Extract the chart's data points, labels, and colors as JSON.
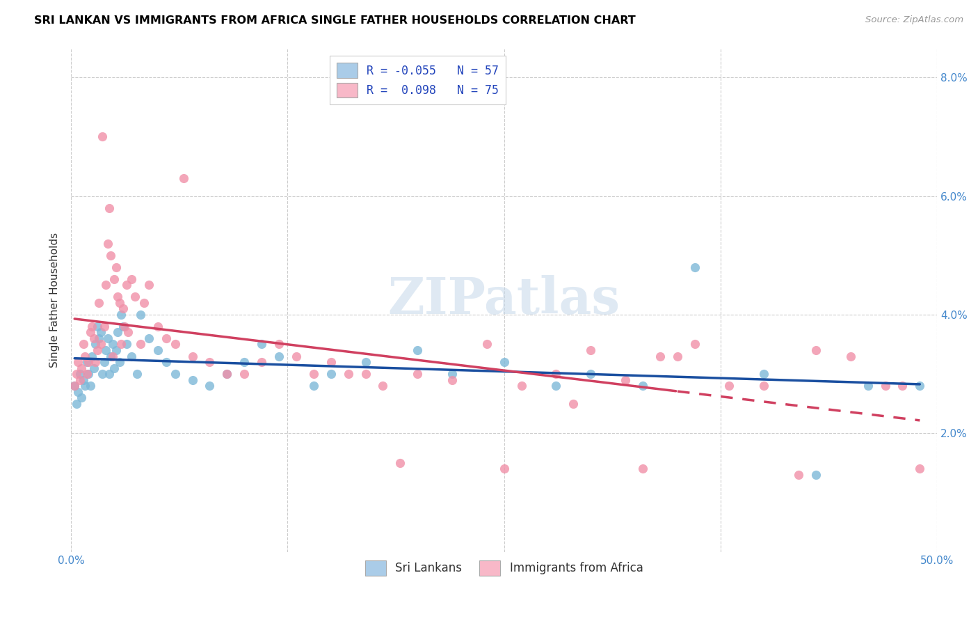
{
  "title": "SRI LANKAN VS IMMIGRANTS FROM AFRICA SINGLE FATHER HOUSEHOLDS CORRELATION CHART",
  "source": "Source: ZipAtlas.com",
  "ylabel": "Single Father Households",
  "xlim": [
    0.0,
    50.0
  ],
  "ylim": [
    0.0,
    8.5
  ],
  "yticks": [
    2.0,
    4.0,
    6.0,
    8.0
  ],
  "xticks": [
    0.0,
    12.5,
    25.0,
    37.5,
    50.0
  ],
  "xtick_labels": [
    "0.0%",
    "",
    "",
    "",
    "50.0%"
  ],
  "sri_lanka_color": "#7db8d8",
  "africa_color": "#f090a8",
  "sri_lanka_line_color": "#1a4fa0",
  "africa_line_color": "#d04060",
  "sri_lanka_legend_color": "#aacce8",
  "africa_legend_color": "#f8b8c8",
  "legend_label_1": "R = -0.055   N = 57",
  "legend_label_2": "R =  0.098   N = 75",
  "bottom_label_1": "Sri Lankans",
  "bottom_label_2": "Immigrants from Africa",
  "watermark_text": "ZIPatlas",
  "sri_lanka_x": [
    0.2,
    0.3,
    0.4,
    0.5,
    0.6,
    0.7,
    0.8,
    0.9,
    1.0,
    1.1,
    1.2,
    1.3,
    1.4,
    1.5,
    1.6,
    1.7,
    1.8,
    1.9,
    2.0,
    2.1,
    2.2,
    2.3,
    2.4,
    2.5,
    2.6,
    2.7,
    2.8,
    2.9,
    3.0,
    3.2,
    3.5,
    3.8,
    4.0,
    4.5,
    5.0,
    5.5,
    6.0,
    7.0,
    8.0,
    9.0,
    10.0,
    11.0,
    12.0,
    14.0,
    15.0,
    17.0,
    20.0,
    22.0,
    25.0,
    28.0,
    30.0,
    33.0,
    36.0,
    40.0,
    43.0,
    46.0,
    49.0
  ],
  "sri_lanka_y": [
    2.8,
    2.5,
    2.7,
    3.0,
    2.6,
    2.9,
    2.8,
    3.2,
    3.0,
    2.8,
    3.3,
    3.1,
    3.5,
    3.8,
    3.6,
    3.7,
    3.0,
    3.2,
    3.4,
    3.6,
    3.0,
    3.3,
    3.5,
    3.1,
    3.4,
    3.7,
    3.2,
    4.0,
    3.8,
    3.5,
    3.3,
    3.0,
    4.0,
    3.6,
    3.4,
    3.2,
    3.0,
    2.9,
    2.8,
    3.0,
    3.2,
    3.5,
    3.3,
    2.8,
    3.0,
    3.2,
    3.4,
    3.0,
    3.2,
    2.8,
    3.0,
    2.8,
    4.8,
    3.0,
    1.3,
    2.8,
    2.8
  ],
  "africa_x": [
    0.2,
    0.3,
    0.4,
    0.5,
    0.6,
    0.7,
    0.8,
    0.9,
    1.0,
    1.1,
    1.2,
    1.3,
    1.4,
    1.5,
    1.6,
    1.7,
    1.8,
    1.9,
    2.0,
    2.1,
    2.2,
    2.3,
    2.4,
    2.5,
    2.6,
    2.7,
    2.8,
    2.9,
    3.0,
    3.1,
    3.2,
    3.3,
    3.5,
    3.7,
    4.0,
    4.2,
    4.5,
    5.0,
    5.5,
    6.0,
    6.5,
    7.0,
    8.0,
    9.0,
    10.0,
    11.0,
    12.0,
    13.0,
    14.0,
    15.0,
    17.0,
    18.0,
    20.0,
    22.0,
    24.0,
    26.0,
    28.0,
    30.0,
    32.0,
    34.0,
    36.0,
    38.0,
    40.0,
    43.0,
    45.0,
    48.0,
    49.0,
    25.0,
    35.0,
    42.0,
    16.0,
    19.0,
    29.0,
    33.0,
    47.0
  ],
  "africa_y": [
    2.8,
    3.0,
    3.2,
    2.9,
    3.1,
    3.5,
    3.3,
    3.0,
    3.2,
    3.7,
    3.8,
    3.6,
    3.2,
    3.4,
    4.2,
    3.5,
    7.0,
    3.8,
    4.5,
    5.2,
    5.8,
    5.0,
    3.3,
    4.6,
    4.8,
    4.3,
    4.2,
    3.5,
    4.1,
    3.8,
    4.5,
    3.7,
    4.6,
    4.3,
    3.5,
    4.2,
    4.5,
    3.8,
    3.6,
    3.5,
    6.3,
    3.3,
    3.2,
    3.0,
    3.0,
    3.2,
    3.5,
    3.3,
    3.0,
    3.2,
    3.0,
    2.8,
    3.0,
    2.9,
    3.5,
    2.8,
    3.0,
    3.4,
    2.9,
    3.3,
    3.5,
    2.8,
    2.8,
    3.4,
    3.3,
    2.8,
    1.4,
    1.4,
    3.3,
    1.3,
    3.0,
    1.5,
    2.5,
    1.4,
    2.8
  ],
  "africa_dashed_start": 35.0
}
